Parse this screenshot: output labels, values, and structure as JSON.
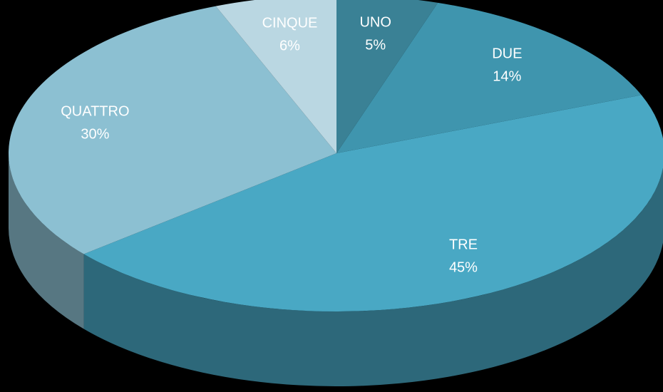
{
  "chart_data": {
    "type": "pie",
    "categories": [
      "UNO",
      "DUE",
      "TRE",
      "QUATTRO",
      "CINQUE"
    ],
    "values": [
      5,
      14,
      45,
      30,
      6
    ],
    "value_labels": [
      "5%",
      "14%",
      "45%",
      "30%",
      "6%"
    ],
    "colors": [
      "#3a8195",
      "#3f95ae",
      "#49a8c4",
      "#8cc0d2",
      "#bad7e2"
    ]
  }
}
